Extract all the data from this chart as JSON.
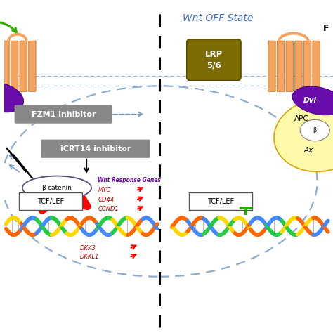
{
  "title": "Wnt OFF State",
  "title_color": "#4472C4",
  "bg_color": "#ffffff",
  "membrane_color": "#F4A460",
  "membrane_border": "#CD853F",
  "lrp_color": "#7B6B00",
  "lrp_label": "LRP\n5/6",
  "dvl_color": "#6A0DAD",
  "dvl_label": "Dvl",
  "apc_label": "APC",
  "axin_label": "Ax",
  "fzm_inhibitor": "FZM1 inhibitor",
  "icrt_inhibitor": "iCRT14 inhibitor",
  "beta_catenin": "β-catenin",
  "tcf_lef": "TCF/LEF",
  "wnt_response": "Wnt Response Genes",
  "genes_up": [
    "MYC",
    "CD44",
    "CCND1"
  ],
  "genes_down": [
    "DKK3",
    "DKKL1"
  ],
  "dashed_line_color": "#7B9EC4",
  "inhibitor_bg": "#888888",
  "dna_colors_top": [
    "#FFD700",
    "#FF6600",
    "#4488FF",
    "#22CC44"
  ],
  "dna_colors_bot": [
    "#FF6600",
    "#4488FF",
    "#22CC44",
    "#FFD700"
  ]
}
